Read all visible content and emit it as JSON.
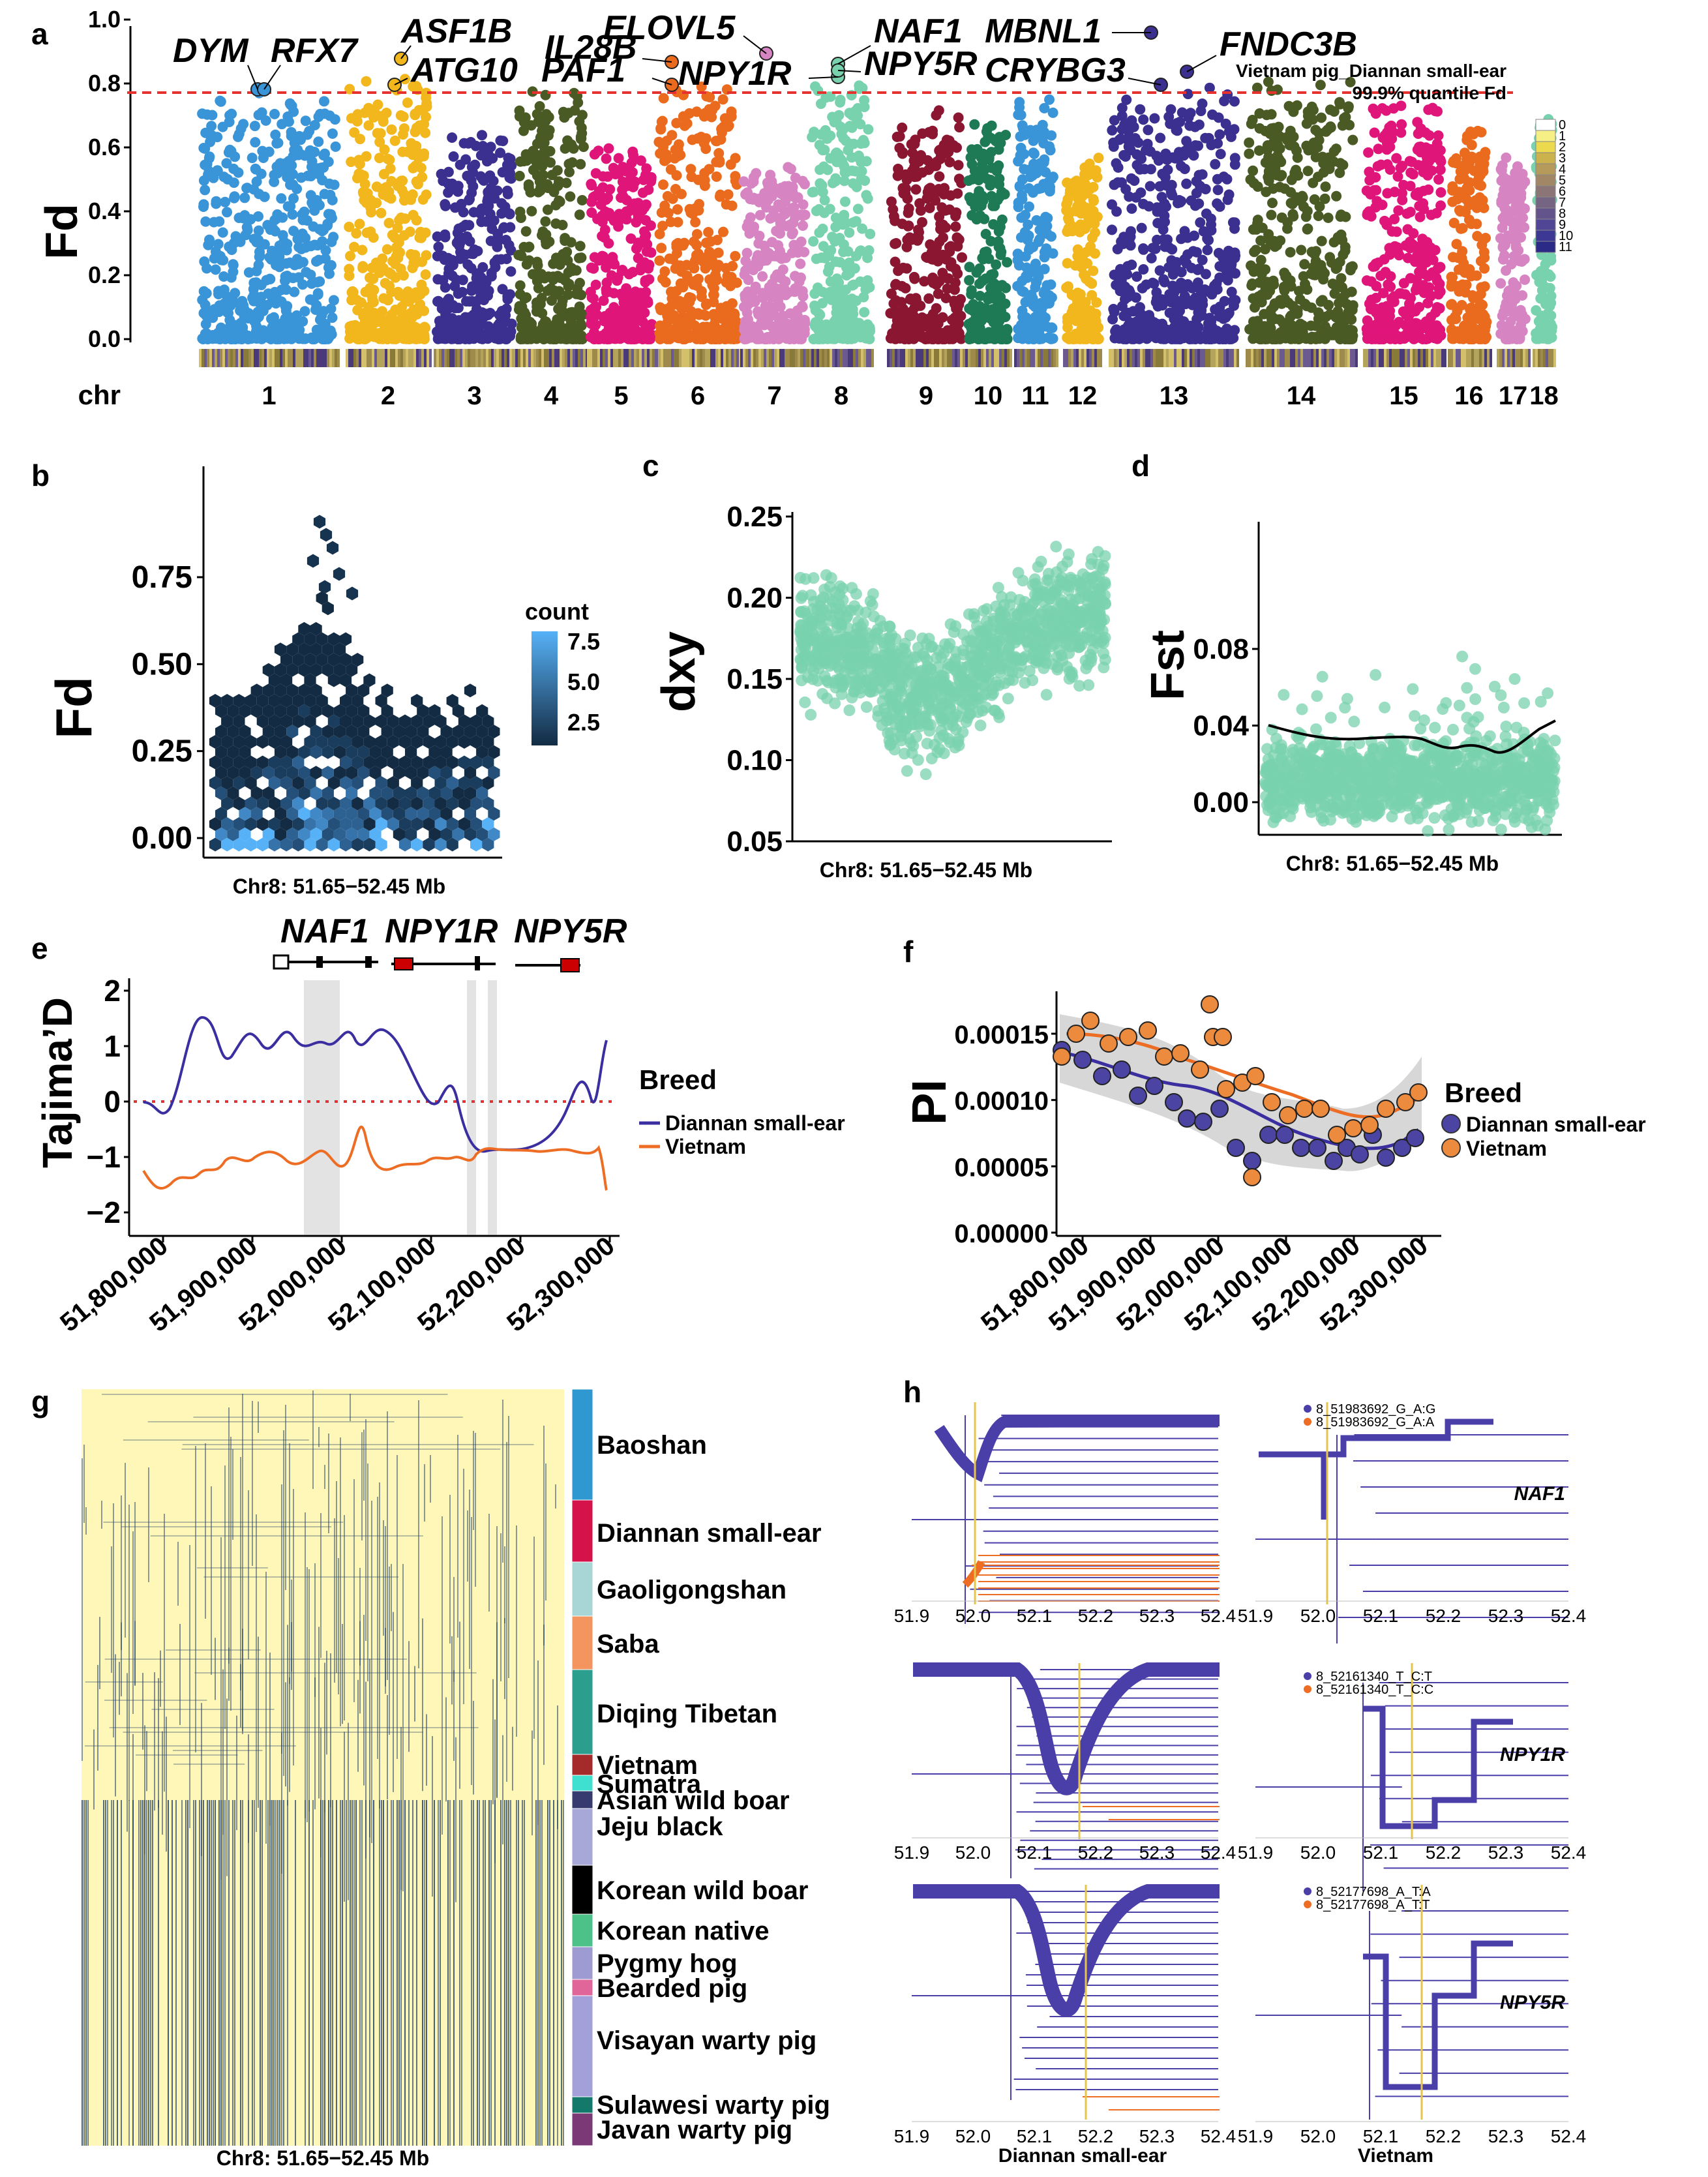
{
  "panels": {
    "a": "a",
    "b": "b",
    "c": "c",
    "d": "d",
    "e": "e",
    "f": "f",
    "g": "g",
    "h": "h"
  },
  "a": {
    "ylabel": "Fd",
    "yticks": [
      "0.0",
      "0.2",
      "0.4",
      "0.6",
      "0.8",
      "1.0"
    ],
    "chr_label": "chr",
    "chromosomes": [
      "1",
      "2",
      "3",
      "4",
      "5",
      "6",
      "7",
      "8",
      "9",
      "10",
      "11",
      "12",
      "13",
      "14",
      "15",
      "16",
      "17",
      "18"
    ],
    "colors": [
      "#3a94d8",
      "#f2b71d",
      "#3b2f8f",
      "#4a5a25",
      "#e0157a",
      "#ea6a1e",
      "#d784c2",
      "#79d2ae",
      "#8a1631",
      "#1e7a55",
      "#3a94d8",
      "#f2b71d",
      "#3b2f8f",
      "#4a5a25",
      "#e0157a",
      "#ea6a1e",
      "#d784c2",
      "#79d2ae"
    ],
    "annotation_title": "Vietnam pig_Diannan small-ear",
    "annotation_sub": "99.9% quantile Fd",
    "genes": [
      "DYM",
      "RFX7",
      "ASF1B",
      "ATG10",
      "PAF1",
      "IL28B",
      "ELOVL5",
      "NPY1R",
      "NAF1",
      "NPY5R",
      "MBNL1",
      "CRYBG3",
      "FNDC3B"
    ],
    "legend_values": [
      "0",
      "1",
      "2",
      "3",
      "4",
      "5",
      "6",
      "7",
      "8",
      "9",
      "10",
      "11"
    ]
  },
  "b": {
    "ylabel": "Fd",
    "yticks": [
      "0.00",
      "0.25",
      "0.50",
      "0.75"
    ],
    "xlabel": "Chr8: 51.65−52.45 Mb",
    "legend_title": "count",
    "legend_ticks": [
      "7.5",
      "5.0",
      "2.5"
    ]
  },
  "c": {
    "ylabel": "dxy",
    "yticks": [
      "0.05",
      "0.10",
      "0.15",
      "0.20",
      "0.25"
    ],
    "xlabel": "Chr8: 51.65−52.45 Mb"
  },
  "d": {
    "ylabel": "Fst",
    "yticks": [
      "0.00",
      "0.04",
      "0.08"
    ],
    "xlabel": "Chr8: 51.65−52.45 Mb"
  },
  "e": {
    "ylabel": "Tajima’D",
    "yticks": [
      "−2",
      "−1",
      "0",
      "1",
      "2"
    ],
    "xticks": [
      "51,800,000",
      "51,900,000",
      "52,000,000",
      "52,100,000",
      "52,200,000",
      "52,300,000"
    ],
    "genes": [
      "NAF1",
      "NPY1R",
      "NPY5R"
    ],
    "legend_title": "Breed",
    "legend": [
      "Diannan small-ear",
      "Vietnam"
    ]
  },
  "f": {
    "ylabel": "PI",
    "yticks": [
      "0.00000",
      "0.00005",
      "0.00010",
      "0.00015"
    ],
    "xticks": [
      "51,800,000",
      "51,900,000",
      "52,000,000",
      "52,100,000",
      "52,200,000",
      "52,300,000"
    ],
    "legend_title": "Breed",
    "legend": [
      "Diannan small-ear",
      "Vietnam"
    ]
  },
  "g": {
    "xlabel": "Chr8: 51.65−52.45 Mb",
    "breeds": [
      "Baoshan",
      "Diannan small-ear",
      "Gaoligongshan",
      "Saba",
      "Diqing Tibetan",
      "Vietnam",
      "Sumatra",
      "Asian wild boar",
      "Jeju black",
      "Korean wild boar",
      "Korean native",
      "Pygmy hog",
      "Bearded pig",
      "Visayan warty pig",
      "Sulawesi warty pig",
      "Javan warty pig"
    ],
    "breed_colors": [
      "#2f98d0",
      "#d5124a",
      "#a8d5d5",
      "#f49560",
      "#2b9e8e",
      "#a52a2a",
      "#40e0d0",
      "#373a6e",
      "#a7a7d8",
      "#000000",
      "#4cc289",
      "#9d9bd2",
      "#e0669a",
      "#a39fd8",
      "#137a6b",
      "#7b3a75"
    ]
  },
  "h": {
    "xticks": [
      "51.9",
      "52.0",
      "52.1",
      "52.2",
      "52.3",
      "52.4"
    ],
    "genes": [
      "NAF1",
      "NPY1R",
      "NPY5R"
    ],
    "legends": [
      [
        "8_51983692_G_A:G",
        "8_51983692_G_A:A"
      ],
      [
        "8_52161340_T_C:T",
        "8_52161340_T_C:C"
      ],
      [
        "8_52177698_A_T:A",
        "8_52177698_A_T:T"
      ]
    ],
    "xlabels": [
      "Diannan small-ear",
      "Vietnam"
    ]
  }
}
